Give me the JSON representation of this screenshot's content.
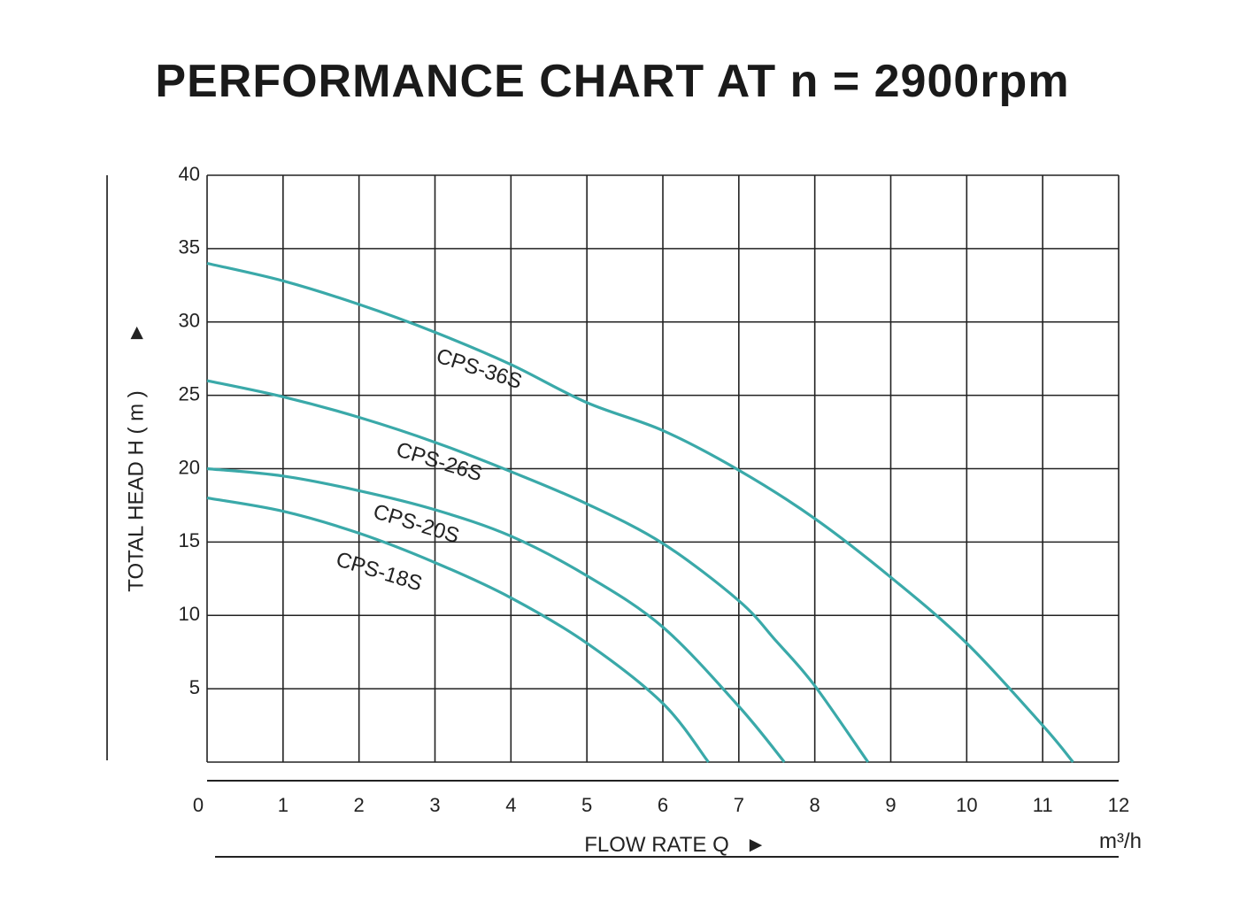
{
  "chart_data": {
    "type": "line",
    "title": "PERFORMANCE CHART AT n = 2900rpm",
    "xlabel": "FLOW RATE Q",
    "xlabel_arrow": "►",
    "x_unit": "m³/h",
    "ylabel": "TOTAL HEAD H ( m )",
    "ylabel_arrow": "►",
    "xlim": [
      0,
      12
    ],
    "ylim": [
      0,
      40
    ],
    "x_ticks": [
      "0",
      "1",
      "2",
      "3",
      "4",
      "5",
      "6",
      "7",
      "8",
      "9",
      "10",
      "11",
      "12"
    ],
    "y_ticks": [
      "5",
      "10",
      "15",
      "20",
      "25",
      "30",
      "35",
      "40"
    ],
    "grid": true,
    "line_color": "#3aa9a9",
    "series": [
      {
        "name": "CPS-36S",
        "x": [
          0,
          1,
          2,
          3,
          4,
          5,
          6,
          7,
          8,
          9,
          10,
          11,
          11.4
        ],
        "y": [
          34,
          32.8,
          31.2,
          29.3,
          27.1,
          24.5,
          22.6,
          19.9,
          16.6,
          12.6,
          8.1,
          2.5,
          0
        ]
      },
      {
        "name": "CPS-26S",
        "x": [
          0,
          1,
          2,
          3,
          4,
          5,
          6,
          7,
          7.5,
          8,
          8.7
        ],
        "y": [
          26,
          24.9,
          23.5,
          21.8,
          19.8,
          17.6,
          14.9,
          11,
          8.2,
          5.2,
          0
        ]
      },
      {
        "name": "CPS-20S",
        "x": [
          0,
          1,
          2,
          3,
          4,
          5,
          6,
          7,
          7.6
        ],
        "y": [
          20,
          19.5,
          18.5,
          17.2,
          15.4,
          12.7,
          9.2,
          3.8,
          0
        ]
      },
      {
        "name": "CPS-18S",
        "x": [
          0,
          1,
          2,
          3,
          4,
          5,
          6,
          6.6
        ],
        "y": [
          18,
          17.1,
          15.6,
          13.6,
          11.2,
          8.1,
          4,
          0
        ]
      }
    ]
  }
}
